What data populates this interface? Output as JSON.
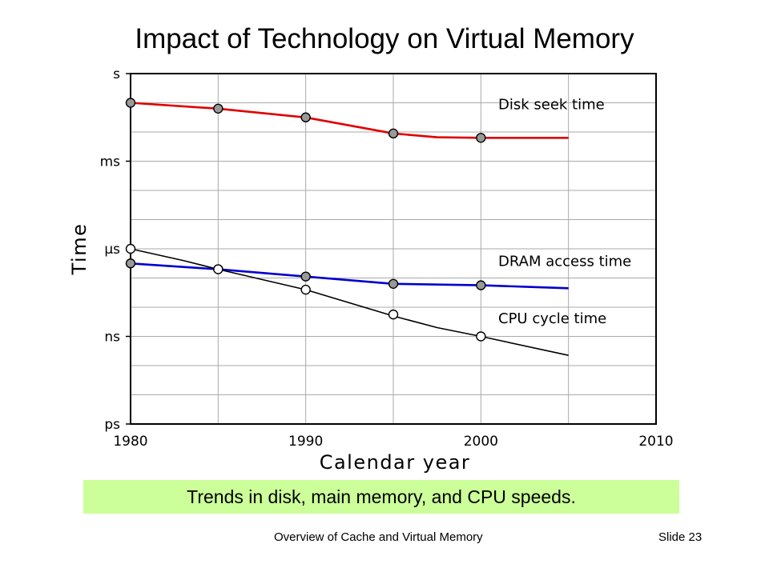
{
  "slide": {
    "title": "Impact of Technology on Virtual Memory",
    "caption": "Trends in disk, main memory, and CPU speeds.",
    "footer_left": "Overview of Cache and Virtual Memory",
    "footer_right": "Slide 23",
    "caption_bg": "#ccff99"
  },
  "chart_data": {
    "type": "line",
    "title": "",
    "xlabel": "Calendar year",
    "ylabel": "Time",
    "xlim": [
      1980,
      2010
    ],
    "x_ticks": [
      "1980",
      "1990",
      "2000",
      "2010"
    ],
    "y_scale": "log",
    "y_ticks": [
      {
        "label": "s",
        "log10_seconds": 0
      },
      {
        "label": "ms",
        "log10_seconds": -3
      },
      {
        "label": "µs",
        "log10_seconds": -6
      },
      {
        "label": "ns",
        "log10_seconds": -9
      },
      {
        "label": "ps",
        "log10_seconds": -12
      }
    ],
    "ylim_log10_seconds": [
      -12,
      0
    ],
    "grid": true,
    "series": [
      {
        "name": "Disk seek time",
        "color": "#e00000",
        "marker_fill": "#999999",
        "curve": [
          [
            1980,
            -1.0
          ],
          [
            1985,
            -1.2
          ],
          [
            1990,
            -1.5
          ],
          [
            1995,
            -2.05
          ],
          [
            1997.5,
            -2.18
          ],
          [
            2000,
            -2.2
          ],
          [
            2005,
            -2.2
          ]
        ],
        "points": [
          [
            1980,
            -1.0
          ],
          [
            1985,
            -1.2
          ],
          [
            1990,
            -1.5
          ],
          [
            1995,
            -2.05
          ],
          [
            2000,
            -2.2
          ]
        ]
      },
      {
        "name": "DRAM access time",
        "color": "#0000cc",
        "marker_fill": "#999999",
        "curve": [
          [
            1980,
            -6.5
          ],
          [
            1985,
            -6.7
          ],
          [
            1990,
            -6.95
          ],
          [
            1995,
            -7.2
          ],
          [
            2000,
            -7.25
          ],
          [
            2002.5,
            -7.3
          ],
          [
            2005,
            -7.35
          ]
        ],
        "points": [
          [
            1980,
            -6.5
          ],
          [
            1985,
            -6.7
          ],
          [
            1990,
            -6.95
          ],
          [
            1995,
            -7.2
          ],
          [
            2000,
            -7.25
          ]
        ]
      },
      {
        "name": "CPU cycle time",
        "color": "#000000",
        "marker_fill": "#ffffff",
        "curve": [
          [
            1980,
            -6.0
          ],
          [
            1983,
            -6.4
          ],
          [
            1985,
            -6.7
          ],
          [
            1990,
            -7.4
          ],
          [
            1995,
            -8.3
          ],
          [
            1997.5,
            -8.7
          ],
          [
            2000,
            -9.0
          ],
          [
            2005,
            -9.65
          ]
        ],
        "points": [
          [
            1980,
            -6.0
          ],
          [
            1985,
            -6.7
          ],
          [
            1990,
            -7.4
          ],
          [
            1995,
            -8.25
          ],
          [
            2000,
            -9.0
          ]
        ]
      }
    ]
  }
}
